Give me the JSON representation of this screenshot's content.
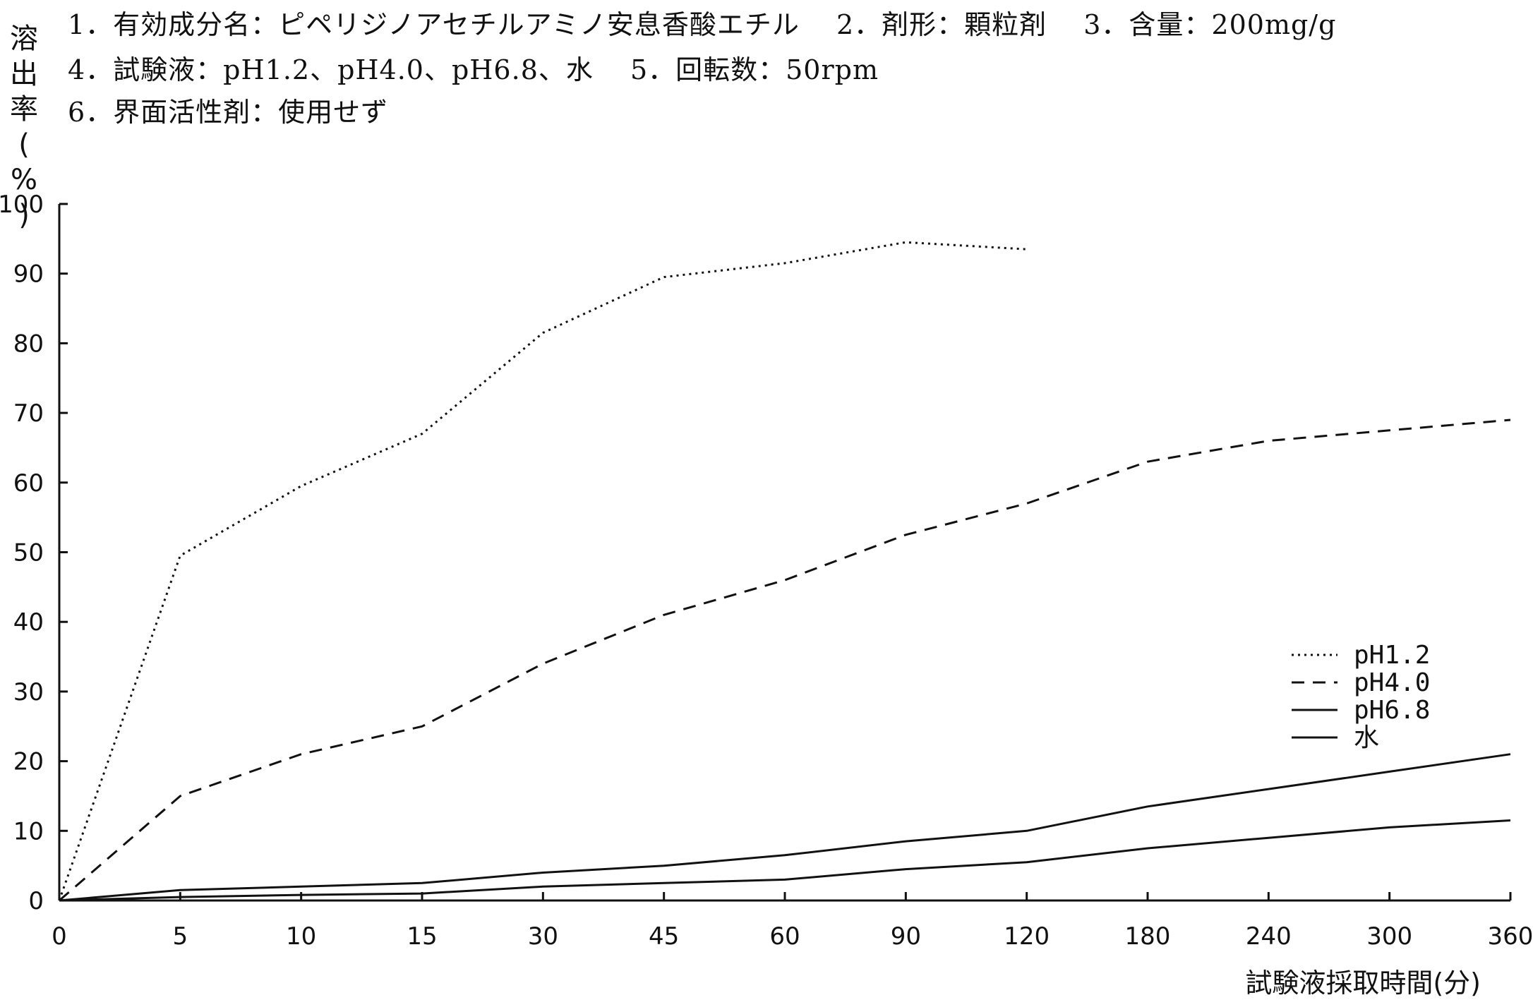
{
  "header": {
    "line1": "1．有効成分名：ピペリジノアセチルアミノ安息香酸エチル　 2．剤形：顆粒剤　 3．含量：200mg/g",
    "line2": "4．試験液：pH1.2、pH4.0、pH6.8、水　 5．回転数：50rpm",
    "line3": "6．界面活性剤：使用せず"
  },
  "chart_data": {
    "type": "line",
    "title": "",
    "ylabel": "溶出率(%)",
    "xlabel": "試験液採取時間(分)",
    "categories": [
      "0",
      "5",
      "10",
      "15",
      "30",
      "45",
      "60",
      "90",
      "120",
      "180",
      "240",
      "300",
      "360"
    ],
    "ylim": [
      0,
      100
    ],
    "yticks": [
      "0",
      "10",
      "20",
      "30",
      "40",
      "50",
      "60",
      "70",
      "80",
      "90",
      "100"
    ],
    "legend_position": "right",
    "series": [
      {
        "name": "pH1.2",
        "style": "dotted",
        "values": [
          0,
          49.5,
          59.5,
          67,
          81.5,
          89.5,
          91.5,
          94.5,
          93.5,
          null,
          null,
          null,
          null
        ]
      },
      {
        "name": "pH4.0",
        "style": "dashed",
        "values": [
          0,
          15,
          21,
          25,
          34,
          41,
          46,
          52.5,
          57,
          63,
          66,
          67.5,
          69
        ]
      },
      {
        "name": "pH6.8",
        "style": "solid",
        "values": [
          0,
          1.5,
          2,
          2.5,
          4,
          5,
          6.5,
          8.5,
          10,
          13.5,
          16,
          18.5,
          21
        ]
      },
      {
        "name": "水",
        "style": "solid",
        "values": [
          0,
          0.5,
          0.8,
          1,
          2,
          2.5,
          3,
          4.5,
          5.5,
          7.5,
          9,
          10.5,
          11.5
        ]
      }
    ]
  }
}
